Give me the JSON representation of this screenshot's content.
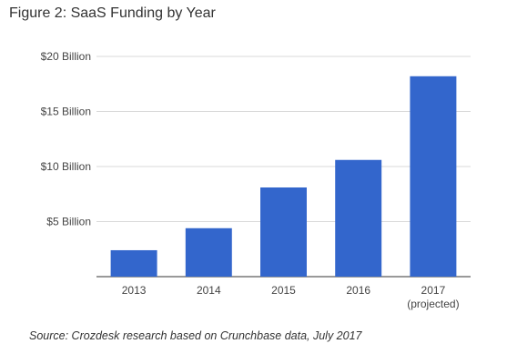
{
  "chart_data": {
    "type": "bar",
    "title": "Figure 2: SaaS Funding by Year",
    "categories": [
      "2013",
      "2014",
      "2015",
      "2016",
      "2017"
    ],
    "category_sublabels": [
      "",
      "",
      "",
      "",
      "(projected)"
    ],
    "values": [
      2.4,
      4.4,
      8.1,
      10.6,
      18.2
    ],
    "unit": "Billion USD",
    "ylim": [
      0,
      20
    ],
    "y_ticks": [
      5,
      10,
      15,
      20
    ],
    "y_tick_labels": [
      "$5 Billion",
      "$10 Billion",
      "$15 Billion",
      "$20 Billion"
    ],
    "grid": true,
    "legend": "none",
    "bar_color": "#3366cc",
    "xlabel": "",
    "ylabel": ""
  },
  "source_note": "Source: Crozdesk research based on Crunchbase data, July 2017"
}
